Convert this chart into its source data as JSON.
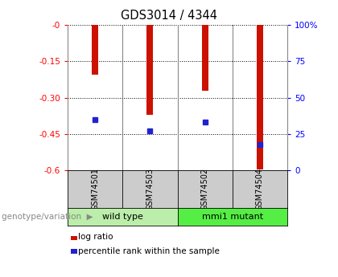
{
  "title": "GDS3014 / 4344",
  "samples": [
    "GSM74501",
    "GSM74503",
    "GSM74502",
    "GSM74504"
  ],
  "log_ratios": [
    -0.205,
    -0.37,
    -0.27,
    -0.595
  ],
  "percentile_ranks": [
    35,
    27,
    33,
    18
  ],
  "ylim_left": [
    -0.6,
    0.0
  ],
  "yticks_left": [
    0.0,
    -0.15,
    -0.3,
    -0.45,
    -0.6
  ],
  "ytick_labels_left": [
    "-0",
    "-0.15",
    "-0.30",
    "-0.45",
    "-0.6"
  ],
  "yticks_right": [
    100,
    75,
    50,
    25,
    0
  ],
  "ytick_labels_right": [
    "100%",
    "75",
    "50",
    "25",
    "0"
  ],
  "bar_color": "#cc1100",
  "dot_color": "#2222cc",
  "groups": [
    {
      "label": "wild type",
      "indices": [
        0,
        1
      ],
      "color": "#bbeeaa"
    },
    {
      "label": "mmi1 mutant",
      "indices": [
        2,
        3
      ],
      "color": "#55ee44"
    }
  ],
  "genotype_label": "genotype/variation",
  "legend_items": [
    "log ratio",
    "percentile rank within the sample"
  ],
  "background_color": "#ffffff",
  "label_box_color": "#cccccc",
  "bar_width": 0.12
}
